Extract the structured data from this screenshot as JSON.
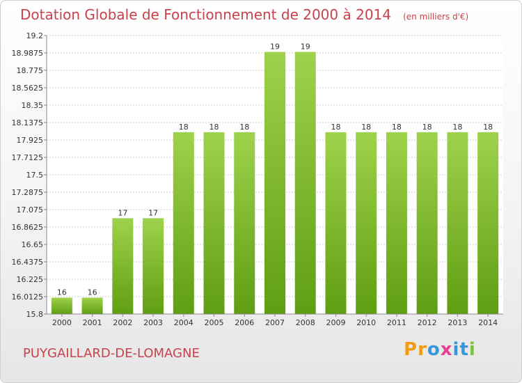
{
  "header": {
    "title": "Dotation Globale de Fonctionnement de 2000 à 2014",
    "unit": "(en milliers d'€)"
  },
  "footer": {
    "commune": "PUYGAILLARD-DE-LOMAGNE",
    "logo": [
      "P",
      "r",
      "o",
      "x",
      "i",
      "t",
      "i"
    ]
  },
  "colors": {
    "title": "#c8424b",
    "bar_top": "#9fd24c",
    "bar_bottom": "#5f9e13",
    "grid": "#cccccc",
    "logo": [
      "#f39c12",
      "#f39c12",
      "#3498db",
      "#e84393",
      "#3498db",
      "#3498db",
      "#7cc242"
    ]
  },
  "chart_data": {
    "type": "bar",
    "title": "Dotation Globale de Fonctionnement de 2000 à 2014",
    "categories": [
      "2000",
      "2001",
      "2002",
      "2003",
      "2004",
      "2005",
      "2006",
      "2007",
      "2008",
      "2009",
      "2010",
      "2011",
      "2012",
      "2013",
      "2014"
    ],
    "values": [
      16,
      16,
      17,
      17,
      18,
      18,
      18,
      19,
      19,
      18,
      18,
      18,
      18,
      18,
      18
    ],
    "bar_values": [
      16.0,
      16.0,
      16.97,
      16.97,
      18.02,
      18.02,
      18.02,
      19.0,
      19.0,
      18.02,
      18.02,
      18.02,
      18.02,
      18.02,
      18.02
    ],
    "ylim": [
      15.8,
      19.2
    ],
    "yticks": [
      "15.8",
      "16.0125",
      "16.225",
      "16.4375",
      "16.65",
      "16.8625",
      "17.075",
      "17.2875",
      "17.5",
      "17.7125",
      "17.925",
      "18.1375",
      "18.35",
      "18.5625",
      "18.775",
      "18.9875",
      "19.2"
    ],
    "grid": true,
    "legend": "none"
  }
}
